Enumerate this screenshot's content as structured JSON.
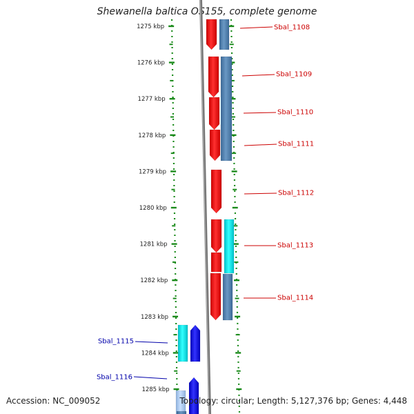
{
  "title": "Shewanella baltica OS155, complete genome",
  "accession": "Accession: NC_009052",
  "summary": "Topology: circular; Length: 5,127,376 bp; Genes: 4,448",
  "colors": {
    "forward_gene": "#ff0000",
    "forward_gene_alt": "#0000ff",
    "reverse_gene": "#4f7fb0",
    "reverse_gene_alt": "#00e5e5",
    "scale": "#1a8a1a",
    "backbone": "#888888",
    "label_red": "#cc0000",
    "label_blue": "#0000aa"
  },
  "scale": {
    "unit": "kbp",
    "ticks": [
      {
        "label": "1275 kbp"
      },
      {
        "label": "1276 kbp"
      },
      {
        "label": "1277 kbp"
      },
      {
        "label": "1278 kbp"
      },
      {
        "label": "1279 kbp"
      },
      {
        "label": "1280 kbp"
      },
      {
        "label": "1281 kbp"
      },
      {
        "label": "1282 kbp"
      },
      {
        "label": "1283 kbp"
      },
      {
        "label": "1284 kbp"
      },
      {
        "label": "1285 kbp"
      }
    ]
  },
  "genes": [
    {
      "name": "Sbal_1108",
      "strand": "forward",
      "color": "red"
    },
    {
      "name": "Sbal_1109",
      "strand": "forward",
      "color": "red"
    },
    {
      "name": "Sbal_1110",
      "strand": "forward",
      "color": "red"
    },
    {
      "name": "Sbal_1111",
      "strand": "forward",
      "color": "red"
    },
    {
      "name": "Sbal_1112",
      "strand": "forward",
      "color": "red"
    },
    {
      "name": "Sbal_1113",
      "strand": "forward",
      "color": "red"
    },
    {
      "name": "Sbal_1114",
      "strand": "forward",
      "color": "red"
    },
    {
      "name": "Sbal_1115",
      "strand": "forward",
      "color": "blue"
    },
    {
      "name": "Sbal_1116",
      "strand": "forward",
      "color": "blue"
    }
  ]
}
